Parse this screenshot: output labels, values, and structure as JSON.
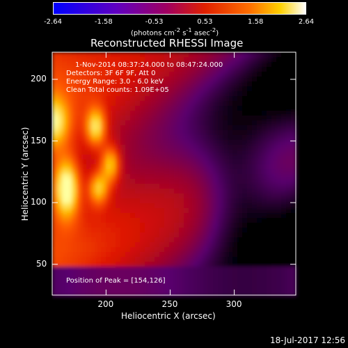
{
  "colorbar": {
    "ticks": [
      "-2.64",
      "-1.58",
      "-0.53",
      "0.53",
      "1.58",
      "2.64"
    ],
    "units_text": "(photons cm",
    "units_sup1": "-2",
    "units_mid1": " s",
    "units_sup2": "-1",
    "units_mid2": " asec",
    "units_sup3": "-2",
    "units_end": ")"
  },
  "chart_data": {
    "type": "heatmap",
    "title": "Reconstructed RHESSI Image",
    "xlabel": "Heliocentric X (arcsec)",
    "ylabel": "Heliocentric Y (arcsec)",
    "xlim": [
      158,
      348
    ],
    "ylim": [
      25,
      222
    ],
    "xticks": [
      200,
      250,
      300
    ],
    "yticks": [
      50,
      100,
      150,
      200
    ],
    "colorbar_range": [
      -2.64,
      2.64
    ],
    "peak_position": [
      154,
      126
    ]
  },
  "annotations": {
    "time_range": "1-Nov-2014 08:37:24.000 to 08:47:24.000",
    "detectors": "Detectors: 3F 6F 9F, Att 0",
    "energy": "Energy Range: 3.0 - 6.0 keV",
    "clean": "Clean    Total counts: 1.09E+05",
    "peak": "Position of Peak = [154,126]"
  },
  "footer": "18-Jul-2017 12:56"
}
